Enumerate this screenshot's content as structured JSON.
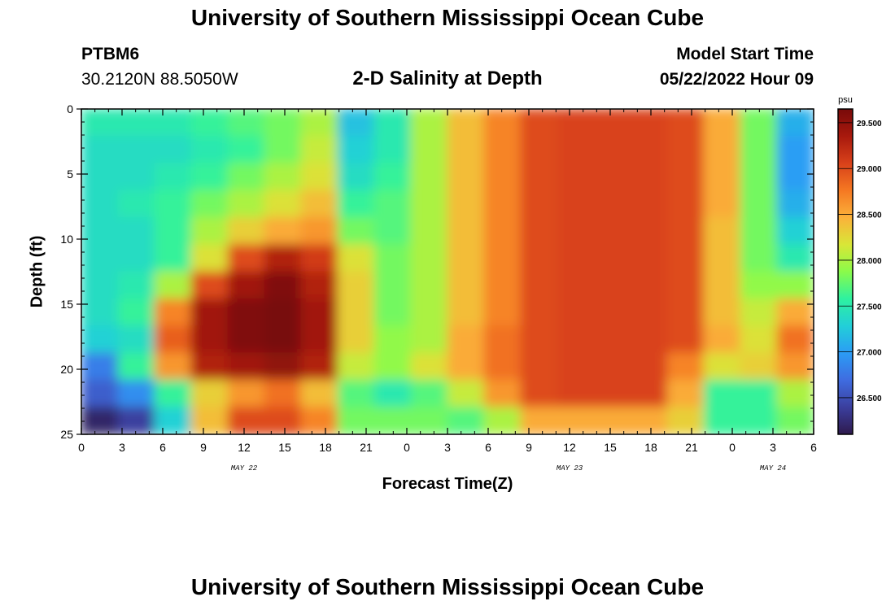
{
  "header": {
    "title": "University of Southern Mississippi Ocean Cube",
    "station_id": "PTBM6",
    "coordinates": "30.2120N  88.5050W",
    "plot_title": "2-D Salinity at Depth",
    "model_start_label": "Model Start Time",
    "model_start_value": "05/22/2022 Hour 09"
  },
  "footer": {
    "title": "University of Southern Mississippi Ocean Cube"
  },
  "chart_data": {
    "type": "heatmap",
    "title": "2-D Salinity at Depth",
    "xlabel": "Forecast Time(Z)",
    "ylabel": "Depth (ft)",
    "x_hours": [
      0,
      54
    ],
    "x_tick_hours": [
      0,
      3,
      6,
      9,
      12,
      15,
      18,
      21,
      24,
      27,
      30,
      33,
      36,
      39,
      42,
      45,
      48,
      51,
      54
    ],
    "x_tick_labels": [
      "0",
      "3",
      "6",
      "9",
      "12",
      "15",
      "18",
      "21",
      "0",
      "3",
      "6",
      "9",
      "12",
      "15",
      "18",
      "21",
      "0",
      "3",
      "6"
    ],
    "date_labels": [
      {
        "text": "MAY 22",
        "hour": 12
      },
      {
        "text": "MAY 23",
        "hour": 36
      },
      {
        "text": "MAY 24",
        "hour": 51
      }
    ],
    "ylim": [
      0,
      25
    ],
    "y_reversed": true,
    "y_ticks": [
      0,
      5,
      10,
      15,
      20,
      25
    ],
    "y_tick_labels": [
      "0",
      "5",
      "10",
      "15",
      "20",
      "25"
    ],
    "colorbar": {
      "unit": "psu",
      "range": [
        26.1,
        29.65
      ],
      "ticks": [
        26.5,
        27.0,
        27.5,
        28.0,
        28.5,
        29.0,
        29.5
      ],
      "tick_labels": [
        "26.500",
        "27.000",
        "27.500",
        "28.000",
        "28.500",
        "29.000",
        "29.500"
      ],
      "colors": [
        "#2e1a4d",
        "#3b3f9e",
        "#3f6ce0",
        "#2b9cf5",
        "#22cfd8",
        "#2ef1a0",
        "#8afb4a",
        "#d9e637",
        "#fbb13a",
        "#f57822",
        "#d8411a",
        "#a8190d",
        "#780a0a"
      ]
    },
    "salinity_psu": [
      [
        27.5,
        27.5,
        27.5,
        27.6,
        27.7,
        27.8,
        28.0,
        27.2,
        27.5,
        28.0,
        28.4,
        28.7,
        29.0,
        29.05,
        29.05,
        29.05,
        29.0,
        28.5,
        27.8,
        27.1
      ],
      [
        27.4,
        27.4,
        27.4,
        27.5,
        27.6,
        27.8,
        28.1,
        27.3,
        27.5,
        28.0,
        28.4,
        28.7,
        29.0,
        29.05,
        29.05,
        29.05,
        29.0,
        28.5,
        27.8,
        27.0
      ],
      [
        27.4,
        27.4,
        27.5,
        27.6,
        27.8,
        28.0,
        28.2,
        27.4,
        27.6,
        28.0,
        28.4,
        28.7,
        29.0,
        29.05,
        29.05,
        29.05,
        29.0,
        28.5,
        27.8,
        27.0
      ],
      [
        27.4,
        27.5,
        27.6,
        27.8,
        28.0,
        28.2,
        28.4,
        27.6,
        27.7,
        28.0,
        28.4,
        28.7,
        29.0,
        29.05,
        29.05,
        29.05,
        29.0,
        28.5,
        27.8,
        27.1
      ],
      [
        27.4,
        27.4,
        27.6,
        28.0,
        28.3,
        28.5,
        28.6,
        27.8,
        27.7,
        28.0,
        28.4,
        28.7,
        29.0,
        29.05,
        29.05,
        29.05,
        29.0,
        28.4,
        27.8,
        27.3
      ],
      [
        27.4,
        27.4,
        27.6,
        28.2,
        29.0,
        29.3,
        29.1,
        28.2,
        27.8,
        28.0,
        28.4,
        28.7,
        29.0,
        29.05,
        29.05,
        29.05,
        29.0,
        28.4,
        27.8,
        27.5
      ],
      [
        27.4,
        27.5,
        28.0,
        29.0,
        29.4,
        29.6,
        29.3,
        28.3,
        27.8,
        28.0,
        28.4,
        28.7,
        29.0,
        29.05,
        29.05,
        29.05,
        29.0,
        28.4,
        27.9,
        27.9
      ],
      [
        27.4,
        27.6,
        28.7,
        29.4,
        29.6,
        29.7,
        29.4,
        28.3,
        27.8,
        28.0,
        28.4,
        28.7,
        29.0,
        29.05,
        29.05,
        29.05,
        29.0,
        28.4,
        28.1,
        28.5
      ],
      [
        27.3,
        27.4,
        28.9,
        29.4,
        29.6,
        29.65,
        29.4,
        28.3,
        27.9,
        28.0,
        28.5,
        28.8,
        29.0,
        29.05,
        29.05,
        29.05,
        29.0,
        28.5,
        28.2,
        28.8
      ],
      [
        26.8,
        27.6,
        28.6,
        29.3,
        29.4,
        29.5,
        29.3,
        28.1,
        27.9,
        28.2,
        28.5,
        28.8,
        29.0,
        29.05,
        29.05,
        29.05,
        28.7,
        28.2,
        28.3,
        28.6
      ],
      [
        26.6,
        26.9,
        27.6,
        28.3,
        28.6,
        28.8,
        28.4,
        27.7,
        27.5,
        27.7,
        28.1,
        28.6,
        29.0,
        29.05,
        29.05,
        29.05,
        28.5,
        27.6,
        27.6,
        28.0
      ],
      [
        26.2,
        26.4,
        27.3,
        28.4,
        29.0,
        29.0,
        28.7,
        27.8,
        27.8,
        27.8,
        27.7,
        28.0,
        28.5,
        28.5,
        28.5,
        28.5,
        28.3,
        27.6,
        27.6,
        27.8
      ]
    ]
  }
}
